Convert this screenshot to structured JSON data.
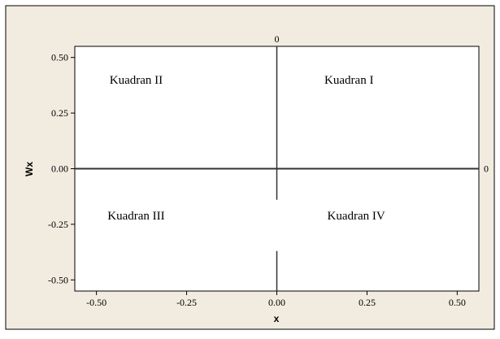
{
  "chart_data": {
    "type": "scatter",
    "title": "",
    "xlabel": "x",
    "ylabel": "Wx",
    "xlim": [
      -0.56,
      0.56
    ],
    "ylim": [
      -0.55,
      0.55
    ],
    "x_ticks": [
      -0.5,
      -0.25,
      0,
      0.25,
      0.5
    ],
    "x_tick_labels": [
      "-0.50",
      "-0.25",
      "0.00",
      "0.25",
      "0.50"
    ],
    "y_ticks": [
      -0.5,
      -0.25,
      0,
      0.25,
      0.5
    ],
    "y_tick_labels": [
      "-0.50",
      "-0.25",
      "0.00",
      "0.25",
      "0.50"
    ],
    "reference_lines": [
      {
        "orientation": "vertical",
        "value": 0,
        "label": "0"
      },
      {
        "orientation": "horizontal",
        "value": 0,
        "label": "0"
      }
    ],
    "annotations": [
      {
        "text": "Kuadran II",
        "x": -0.39,
        "y": 0.4
      },
      {
        "text": "Kuadran I",
        "x": 0.2,
        "y": 0.4
      },
      {
        "text": "Kuadran III",
        "x": -0.39,
        "y": -0.21
      },
      {
        "text": "Kuadran IV",
        "x": 0.22,
        "y": -0.21
      }
    ],
    "points": [],
    "grid": false,
    "legend": "none",
    "colors": {
      "background": "#f2ebe0",
      "plot_background": "#ffffff",
      "axis": "#000000",
      "reference_line": "#333333"
    }
  }
}
